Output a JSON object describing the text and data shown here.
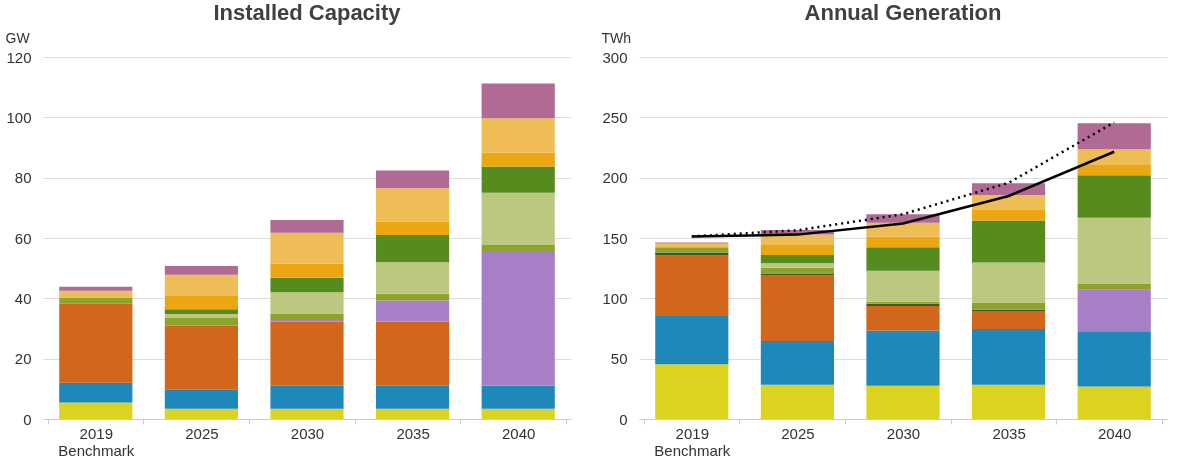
{
  "chart_data": [
    {
      "type": "bar",
      "title": "Installed Capacity",
      "ylabel": "GW",
      "stacked": true,
      "grid": "y",
      "legend": false,
      "categories": [
        "2019\nBenchmark",
        "2025",
        "2030",
        "2035",
        "2040"
      ],
      "ylim": [
        0,
        120
      ],
      "yticks": [
        0,
        20,
        40,
        60,
        80,
        100,
        120
      ],
      "series": [
        {
          "color": "#dcd321",
          "values": [
            5.5,
            3.4,
            3.4,
            3.4,
            3.4
          ]
        },
        {
          "color": "#1f88ba",
          "values": [
            6.5,
            6.3,
            7.6,
            7.6,
            7.6
          ]
        },
        {
          "color": "#d2661a",
          "values": [
            26.2,
            21.3,
            21.2,
            21.3,
            null
          ]
        },
        {
          "color": "#a77fc6",
          "values": [
            null,
            null,
            0.6,
            7,
            44.7
          ]
        },
        {
          "color": "#8ea22e",
          "values": [
            2.1,
            2.5,
            2.2,
            2.2,
            2
          ]
        },
        {
          "color": "#bcc87f",
          "values": [
            null,
            1.3,
            7,
            10.5,
            17.3
          ]
        },
        {
          "color": "#568c1e",
          "values": [
            null,
            1.6,
            4.8,
            9,
            8.7
          ]
        },
        {
          "color": "#eba712",
          "values": [
            null,
            4.4,
            4.7,
            4.5,
            4.6
          ]
        },
        {
          "color": "#efbd55",
          "values": [
            2.2,
            7,
            10.2,
            11,
            11.4
          ]
        },
        {
          "color": "#b06a93",
          "values": [
            1.3,
            2.9,
            4.3,
            5.9,
            11.5
          ]
        }
      ]
    },
    {
      "type": "bar",
      "title": "Annual Generation",
      "ylabel": "TWh",
      "stacked": true,
      "grid": "y",
      "legend": false,
      "categories": [
        "2019\nBenchmark",
        "2025",
        "2030",
        "2035",
        "2040"
      ],
      "ylim": [
        0,
        300
      ],
      "yticks": [
        0,
        50,
        100,
        150,
        200,
        250,
        300
      ],
      "series": [
        {
          "color": "#dcd321",
          "values": [
            45.3,
            28.4,
            27.5,
            28.4,
            26.9
          ]
        },
        {
          "color": "#1f88ba",
          "values": [
            40,
            36.2,
            45.9,
            46.2,
            45.9
          ]
        },
        {
          "color": "#d2661a",
          "values": [
            50.3,
            54.4,
            20.2,
            14.8,
            null
          ]
        },
        {
          "color": "#3e5a1f",
          "values": [
            2.4,
            1.5,
            2,
            1.2,
            null
          ]
        },
        {
          "color": "#a77fc6",
          "values": [
            null,
            null,
            null,
            null,
            34.7
          ]
        },
        {
          "color": "#8ea22e",
          "values": [
            4.4,
            4.8,
            1.5,
            5.6,
            4.7
          ]
        },
        {
          "color": "#bcc87f",
          "values": [
            null,
            3.8,
            25.8,
            33.5,
            54.5
          ]
        },
        {
          "color": "#568c1e",
          "values": [
            null,
            6.8,
            19.5,
            34.9,
            35.3
          ]
        },
        {
          "color": "#eba712",
          "values": [
            null,
            8.3,
            8.9,
            8.6,
            8.5
          ]
        },
        {
          "color": "#efbd55",
          "values": [
            3,
            8.6,
            11.3,
            12.5,
            13.1
          ]
        },
        {
          "color": "#b06a93",
          "values": [
            0.9,
            3.8,
            7.1,
            9.7,
            21.6
          ]
        },
        {
          "type": "line",
          "color": "#000000",
          "line_style": "solid",
          "marker": "none",
          "values": [
            151.3,
            152.8,
            162,
            184.8,
            221.5
          ]
        },
        {
          "type": "line",
          "color": "#000000",
          "line_style": "dotted",
          "marker": "none",
          "values": [
            151.3,
            156.4,
            169.7,
            195.7,
            245.8
          ]
        }
      ]
    }
  ]
}
